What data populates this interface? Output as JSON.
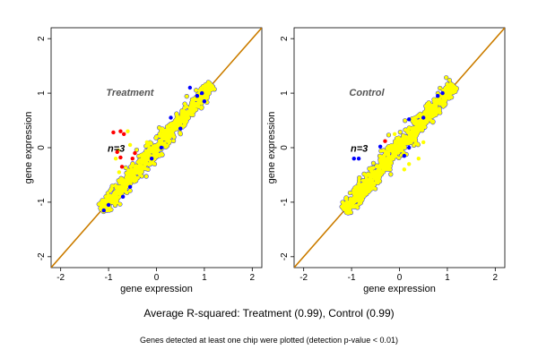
{
  "chart_data": [
    {
      "type": "scatter",
      "panel_label": "Treatment",
      "n_label": "n=3",
      "xlabel": "gene expression",
      "ylabel": "gene expression",
      "xlim": [
        -2.2,
        2.2
      ],
      "ylim": [
        -2.2,
        2.2
      ],
      "xticks": [
        -2,
        -1,
        0,
        1,
        2
      ],
      "yticks": [
        -2,
        -1,
        0,
        1,
        2
      ],
      "grid": false,
      "diagonal": {
        "from": [
          -2.2,
          -2.2
        ],
        "to": [
          2.2,
          2.2
        ]
      },
      "cloud": {
        "x_range": [
          -1.15,
          1.15
        ],
        "spread": 0.12,
        "count": 650
      },
      "series": [
        {
          "color": "#ffff00",
          "points": [
            [
              -0.8,
              -0.05
            ],
            [
              -0.85,
              -0.2
            ],
            [
              -0.78,
              -0.45
            ],
            [
              -0.6,
              0.3
            ],
            [
              -0.55,
              0.05
            ],
            [
              -0.3,
              -0.2
            ],
            [
              -0.2,
              0.1
            ]
          ]
        },
        {
          "color": "#ff0000",
          "points": [
            [
              -0.9,
              0.28
            ],
            [
              -0.75,
              0.3
            ],
            [
              -0.68,
              0.25
            ],
            [
              -0.82,
              -0.08
            ],
            [
              -0.75,
              -0.18
            ],
            [
              -0.72,
              -0.35
            ],
            [
              -0.5,
              -0.2
            ],
            [
              -0.45,
              -0.1
            ]
          ]
        },
        {
          "color": "#0000ff",
          "points": [
            [
              -1.1,
              -1.15
            ],
            [
              -1.0,
              -1.05
            ],
            [
              -0.55,
              -0.72
            ],
            [
              0.7,
              1.1
            ],
            [
              0.95,
              1.0
            ],
            [
              1.0,
              0.85
            ],
            [
              -0.1,
              -0.2
            ],
            [
              0.3,
              0.55
            ],
            [
              0.5,
              0.35
            ],
            [
              0.85,
              0.95
            ],
            [
              -0.7,
              -0.9
            ],
            [
              0.1,
              0.0
            ]
          ]
        }
      ],
      "colors": {
        "cloud": "#ffff00",
        "edge": "#0000ff",
        "line": "#cc5500",
        "line2": "#cc9900"
      }
    },
    {
      "type": "scatter",
      "panel_label": "Control",
      "n_label": "n=3",
      "xlabel": "gene expression",
      "ylabel": "gene expression",
      "xlim": [
        -2.2,
        2.2
      ],
      "ylim": [
        -2.2,
        2.2
      ],
      "xticks": [
        -2,
        -1,
        0,
        1,
        2
      ],
      "yticks": [
        -2,
        -1,
        0,
        1,
        2
      ],
      "grid": false,
      "diagonal": {
        "from": [
          -2.2,
          -2.2
        ],
        "to": [
          2.2,
          2.2
        ]
      },
      "cloud": {
        "x_range": [
          -1.15,
          1.15
        ],
        "spread": 0.14,
        "count": 700
      },
      "series": [
        {
          "color": "#ffff00",
          "points": [
            [
              -0.3,
              -0.25
            ],
            [
              0.1,
              -0.4
            ],
            [
              0.2,
              -0.3
            ],
            [
              0.5,
              0.1
            ],
            [
              0.4,
              -0.2
            ],
            [
              -0.1,
              0.25
            ]
          ]
        },
        {
          "color": "#ff0000",
          "points": [
            [
              -0.3,
              0.12
            ]
          ]
        },
        {
          "color": "#0000ff",
          "points": [
            [
              -0.95,
              -0.2
            ],
            [
              -0.85,
              -0.2
            ],
            [
              -0.4,
              0.02
            ],
            [
              0.9,
              1.0
            ],
            [
              0.5,
              0.55
            ],
            [
              0.2,
              0.0
            ],
            [
              0.1,
              -0.15
            ],
            [
              0.8,
              0.95
            ],
            [
              0.2,
              0.52
            ]
          ]
        }
      ],
      "colors": {
        "cloud": "#ffff00",
        "edge": "#0000ff",
        "line": "#cc5500",
        "line2": "#cc9900"
      }
    }
  ],
  "captions": {
    "summary": "Average R-squared: Treatment (0.99), Control (0.99)",
    "footnote": "Genes detected at least one chip were plotted (detection p-value < 0.01)"
  }
}
